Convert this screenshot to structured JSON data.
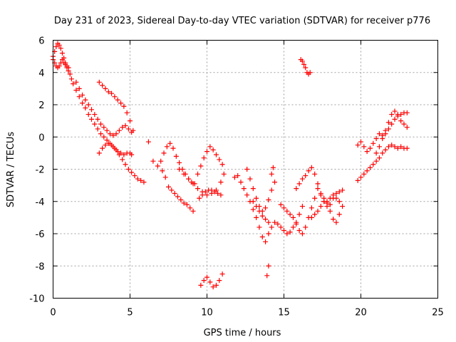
{
  "chart_data": {
    "type": "scatter",
    "title": "Day 231 of 2023, Sidereal Day-to-day VTEC variation (SDTVAR) for receiver p776",
    "xlabel": "GPS time / hours",
    "ylabel": "SDTVAR / TECUs",
    "xlim": [
      0,
      25
    ],
    "ylim": [
      -10,
      6
    ],
    "xticks": [
      "0",
      "5",
      "10",
      "15",
      "20",
      "25"
    ],
    "yticks": [
      "-10",
      "-8",
      "-6",
      "-4",
      "-2",
      "0",
      "2",
      "4",
      "6"
    ],
    "grid": true,
    "marker": "plus",
    "color": "#ff0000",
    "series": [
      {
        "x": [
          0.0,
          0.1,
          0.2,
          0.3,
          0.4,
          0.5,
          0.6,
          0.7,
          0.8,
          0.9,
          1.0,
          1.1,
          1.2,
          1.3,
          1.5,
          1.7,
          1.9,
          2.1,
          2.3,
          2.5,
          2.7,
          2.9,
          3.1,
          3.3,
          3.5,
          3.7,
          3.9,
          4.1,
          4.3,
          4.5,
          4.7,
          4.9,
          5.1,
          5.3,
          5.5,
          5.7,
          5.9
        ],
        "y": [
          5.0,
          5.3,
          5.6,
          5.8,
          5.7,
          5.5,
          5.2,
          4.9,
          4.6,
          4.3,
          4.1,
          3.9,
          3.6,
          3.3,
          2.9,
          2.5,
          2.1,
          1.8,
          1.4,
          1.1,
          0.8,
          0.5,
          0.2,
          0.0,
          -0.2,
          -0.4,
          -0.6,
          -0.8,
          -1.1,
          -1.4,
          -1.7,
          -2.0,
          -2.2,
          -2.4,
          -2.6,
          -2.7,
          -2.8
        ]
      },
      {
        "x": [
          0.0,
          0.1,
          0.2,
          0.3,
          0.4,
          0.5,
          0.6,
          0.7,
          0.8,
          0.9,
          1.0
        ],
        "y": [
          4.8,
          4.6,
          4.4,
          4.3,
          4.4,
          4.6,
          4.8,
          4.6,
          4.5,
          4.4,
          4.3
        ]
      },
      {
        "x": [
          1.5,
          1.7,
          1.9,
          2.1,
          2.3,
          2.5,
          2.7,
          2.9,
          3.1,
          3.3,
          3.5,
          3.7,
          3.9,
          4.1,
          4.3,
          4.5,
          4.7,
          4.9,
          5.1
        ],
        "y": [
          3.4,
          3.0,
          2.6,
          2.3,
          2.0,
          1.7,
          1.4,
          1.1,
          0.8,
          0.6,
          0.4,
          0.2,
          0.1,
          0.2,
          0.4,
          0.6,
          0.7,
          0.5,
          0.3
        ]
      },
      {
        "x": [
          3.0,
          3.2,
          3.4,
          3.6,
          3.8,
          4.0,
          4.2,
          4.4,
          4.6,
          4.8,
          5.0,
          5.1
        ],
        "y": [
          -1.0,
          -0.7,
          -0.5,
          -0.4,
          -0.5,
          -0.7,
          -0.9,
          -1.0,
          -1.1,
          -1.0,
          -1.0,
          -1.1
        ]
      },
      {
        "x": [
          3.0,
          3.2,
          3.4,
          3.6,
          3.8,
          4.0,
          4.2,
          4.4,
          4.6,
          4.8,
          5.0,
          5.2
        ],
        "y": [
          3.4,
          3.2,
          3.0,
          2.8,
          2.7,
          2.5,
          2.3,
          2.1,
          1.9,
          1.5,
          1.0,
          0.4
        ]
      },
      {
        "x": [
          6.2,
          6.5,
          6.8,
          7.1,
          7.3,
          7.5,
          7.7,
          7.9,
          8.1,
          8.3,
          8.5,
          8.7,
          8.9,
          9.1
        ],
        "y": [
          -0.3,
          -1.5,
          -1.8,
          -2.1,
          -2.5,
          -3.1,
          -3.3,
          -3.5,
          -3.7,
          -3.9,
          -4.1,
          -4.2,
          -4.4,
          -4.6
        ]
      },
      {
        "x": [
          7.0,
          7.2,
          7.4,
          7.6,
          7.8,
          8.0,
          8.2,
          8.4,
          8.6,
          8.8,
          9.0,
          9.2,
          9.4,
          9.6,
          9.8,
          10.0,
          10.2,
          10.4,
          10.6,
          10.8,
          11.0
        ],
        "y": [
          -1.5,
          -1.0,
          -0.6,
          -0.4,
          -0.7,
          -1.2,
          -1.6,
          -2.0,
          -2.3,
          -2.6,
          -2.8,
          -2.9,
          -2.3,
          -1.8,
          -1.3,
          -0.9,
          -0.6,
          -0.8,
          -1.1,
          -1.4,
          -1.7
        ]
      },
      {
        "x": [
          8.2,
          8.5,
          8.8,
          9.1,
          9.4,
          9.7,
          10.0,
          10.3,
          10.6,
          10.9,
          11.1
        ],
        "y": [
          -2.0,
          -2.3,
          -2.6,
          -2.9,
          -3.2,
          -3.4,
          -3.6,
          -3.5,
          -3.3,
          -2.8,
          -2.3
        ]
      },
      {
        "x": [
          9.5,
          9.7,
          9.9,
          10.1,
          10.3,
          10.5,
          10.7,
          10.9
        ],
        "y": [
          -3.8,
          -3.6,
          -3.4,
          -3.3,
          -3.3,
          -3.4,
          -3.5,
          -3.6
        ]
      },
      {
        "x": [
          9.6,
          9.8,
          10.0,
          10.2,
          10.4,
          10.6,
          10.8,
          11.0
        ],
        "y": [
          -9.2,
          -8.9,
          -8.7,
          -9.0,
          -9.3,
          -9.2,
          -8.9,
          -8.5
        ]
      },
      {
        "x": [
          11.8,
          12.0,
          12.2,
          12.4,
          12.6,
          12.8,
          13.0,
          13.2,
          13.4,
          13.6,
          13.8,
          14.0,
          14.2,
          14.4,
          14.6,
          14.8,
          15.0,
          15.2,
          15.4,
          15.6,
          15.8,
          16.0,
          16.2
        ],
        "y": [
          -2.5,
          -2.4,
          -2.8,
          -3.2,
          -3.6,
          -4.0,
          -4.5,
          -5.0,
          -5.6,
          -6.2,
          -6.5,
          -6.0,
          -5.6,
          -5.3,
          -5.4,
          -5.6,
          -5.8,
          -6.0,
          -5.9,
          -5.6,
          -5.3,
          -4.8,
          -4.3
        ]
      },
      {
        "x": [
          12.6,
          12.8,
          13.0,
          13.2,
          13.4,
          13.6,
          13.8,
          14.0,
          14.2,
          14.4
        ],
        "y": [
          -2.0,
          -2.6,
          -3.2,
          -3.8,
          -4.3,
          -4.6,
          -4.4,
          -3.9,
          -3.3,
          -2.8
        ]
      },
      {
        "x": [
          13.0,
          13.2,
          13.4,
          13.6,
          13.8,
          14.0
        ],
        "y": [
          -4.0,
          -4.3,
          -4.6,
          -4.9,
          -5.1,
          -5.3
        ]
      },
      {
        "x": [
          13.9,
          14.0
        ],
        "y": [
          -8.6,
          -8.0
        ]
      },
      {
        "x": [
          14.2,
          14.3
        ],
        "y": [
          -2.3,
          -1.9
        ]
      },
      {
        "x": [
          14.8,
          15.0,
          15.2,
          15.4,
          15.6,
          15.8,
          16.0,
          16.2,
          16.4,
          16.6,
          16.8,
          17.0,
          17.2
        ],
        "y": [
          -4.2,
          -4.4,
          -4.6,
          -4.8,
          -5.0,
          -5.4,
          -5.8,
          -6.0,
          -5.6,
          -5.0,
          -4.4,
          -3.8,
          -3.2
        ]
      },
      {
        "x": [
          15.8,
          16.0,
          16.2,
          16.4,
          16.6,
          16.8,
          17.0,
          17.2,
          17.4,
          17.6,
          17.8,
          18.0,
          18.2,
          18.4,
          18.6,
          18.8
        ],
        "y": [
          -3.2,
          -2.9,
          -2.6,
          -2.4,
          -2.1,
          -1.9,
          -2.3,
          -2.9,
          -3.5,
          -4.0,
          -4.3,
          -4.2,
          -3.8,
          -3.5,
          -3.4,
          -3.3
        ]
      },
      {
        "x": [
          16.8,
          17.0,
          17.2,
          17.4,
          17.6,
          17.8,
          18.0,
          18.2,
          18.4,
          18.6,
          18.8
        ],
        "y": [
          -5.0,
          -4.8,
          -4.6,
          -4.3,
          -4.0,
          -4.1,
          -4.6,
          -5.1,
          -5.3,
          -4.8,
          -4.3
        ]
      },
      {
        "x": [
          17.4,
          17.6,
          17.8,
          18.0,
          18.2,
          18.4,
          18.6
        ],
        "y": [
          -3.6,
          -3.8,
          -4.0,
          -3.8,
          -3.6,
          -3.8,
          -4.0
        ]
      },
      {
        "x": [
          16.1,
          16.2,
          16.3,
          16.4,
          16.5,
          16.6,
          16.7
        ],
        "y": [
          4.8,
          4.7,
          4.5,
          4.3,
          4.0,
          3.9,
          4.0
        ]
      },
      {
        "x": [
          19.8,
          20.0,
          20.2,
          20.4,
          20.6,
          20.8,
          21.0,
          21.2,
          21.4,
          21.6,
          21.8,
          22.0,
          22.2,
          22.4,
          22.6,
          22.8,
          23.0
        ],
        "y": [
          -2.7,
          -2.5,
          -2.3,
          -2.1,
          -1.9,
          -1.7,
          -1.5,
          -1.3,
          -1.0,
          -0.8,
          -0.6,
          -0.5,
          -0.6,
          -0.7,
          -0.6,
          -0.7,
          -0.7
        ]
      },
      {
        "x": [
          19.8,
          20.0,
          20.2,
          20.4,
          20.6,
          20.8,
          21.0,
          21.2,
          21.4
        ],
        "y": [
          -0.5,
          -0.3,
          -0.6,
          -0.9,
          -0.7,
          -0.4,
          -0.1,
          0.2,
          0.1
        ]
      },
      {
        "x": [
          21.0,
          21.2,
          21.4,
          21.6,
          21.8,
          22.0,
          22.2,
          22.4,
          22.6,
          22.8,
          23.0
        ],
        "y": [
          -1.0,
          -0.6,
          -0.1,
          0.4,
          0.9,
          1.4,
          1.6,
          1.4,
          1.0,
          0.8,
          0.6
        ]
      },
      {
        "x": [
          21.6,
          21.8,
          22.0,
          22.2,
          22.4,
          22.6,
          22.8,
          23.0
        ],
        "y": [
          0.2,
          0.5,
          0.8,
          1.1,
          1.3,
          1.4,
          1.5,
          1.5
        ]
      }
    ]
  }
}
